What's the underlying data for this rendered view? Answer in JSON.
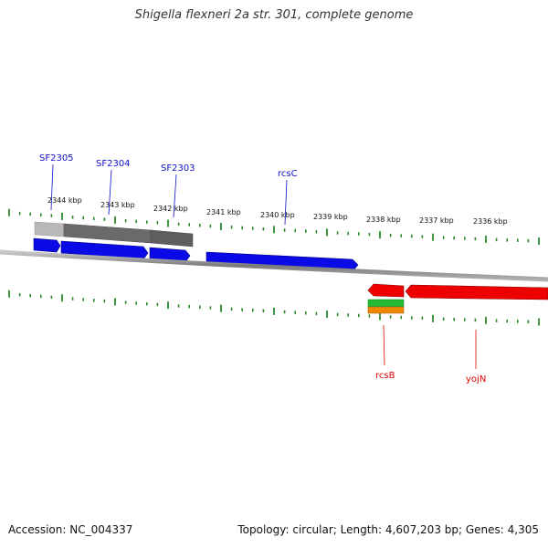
{
  "title": "Shigella flexneri 2a str. 301, complete genome",
  "ruler": {
    "tick_labels": [
      "2344 kbp",
      "2343 kbp",
      "2342 kbp",
      "2341 kbp",
      "2340 kbp",
      "2339 kbp",
      "2338 kbp",
      "2337 kbp",
      "2336 kbp"
    ]
  },
  "forward_genes": [
    {
      "label": "SF2305",
      "color": "#1010c8"
    },
    {
      "label": "SF2304",
      "color": "#1010c8"
    },
    {
      "label": "SF2303",
      "color": "#1010c8"
    },
    {
      "label": "rcsC",
      "color": "#1010c8"
    }
  ],
  "reverse_genes": [
    {
      "label": "rcsB",
      "color": "#e00000"
    },
    {
      "label": "yojN",
      "color": "#e00000"
    }
  ],
  "colors": {
    "forward_feature": "#0a0ae6",
    "reverse_feature": "#ee0000",
    "backbone": "#8a8a8a",
    "tick": "#2a8a2a",
    "feature_grey_light": "#b8b8b8",
    "feature_grey_dark": "#666666",
    "feature_green": "#22bb33",
    "feature_orange": "#ee8800"
  },
  "footer": {
    "accession": "Accession: NC_004337",
    "stats": "Topology: circular; Length: 4,607,203 bp; Genes: 4,305"
  }
}
